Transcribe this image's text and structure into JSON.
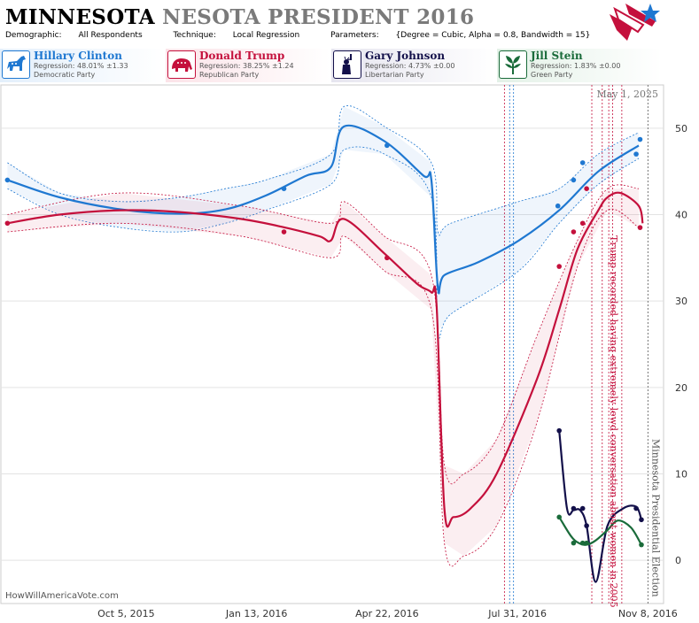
{
  "header": {
    "title_state": "MINNESOTA",
    "title_rest": "NESOTA PRESIDENT 2016",
    "demographic_label": "Demographic:",
    "demographic_value": "All Respondents",
    "technique_label": "Technique:",
    "technique_value": "Local Regression",
    "parameters_label": "Parameters:",
    "parameters_value": "{Degree = Cubic, Alpha = 0.8, Bandwidth = 15}"
  },
  "candidates": [
    {
      "name": "Hillary Clinton",
      "regression": "Regression: 48.01% ±1.33",
      "party": "Democratic Party",
      "color": "#1f78d1",
      "icon": "donkey-icon"
    },
    {
      "name": "Donald Trump",
      "regression": "Regression: 38.25% ±1.24",
      "party": "Republican Party",
      "color": "#c4103c",
      "icon": "elephant-icon"
    },
    {
      "name": "Gary Johnson",
      "regression": "Regression: 4.73% ±0.00",
      "party": "Libertarian Party",
      "color": "#13104a",
      "icon": "liberty-icon"
    },
    {
      "name": "Jill Stein",
      "regression": "Regression: 1.83% ±0.00",
      "party": "Green Party",
      "color": "#1a6b3a",
      "icon": "leaf-icon"
    }
  ],
  "credit": "HowWillAmericaVote.com",
  "chart_data": {
    "type": "line",
    "x_ticks": [
      "Oct 5, 2015",
      "Jan 13, 2016",
      "Apr 22, 2016",
      "Jul 31, 2016",
      "Nov 8, 2016"
    ],
    "y_ticks": [
      0,
      10,
      20,
      30,
      40,
      50
    ],
    "ylim": [
      -5,
      55
    ],
    "xlim": [
      "2015-07-01",
      "2016-11-20"
    ],
    "date_stamp": "May 1, 2025",
    "annotations": [
      {
        "date": "2016-10-07",
        "text": "Trump recorded having extremely lewd conversation about women in 2005",
        "color": "#c4103c"
      },
      {
        "date": "2016-11-08",
        "text": "Minnesota Presidential Election",
        "color": "#555555"
      }
    ],
    "event_lines": [
      {
        "date": "2016-07-21",
        "color": "#c4103c"
      },
      {
        "date": "2016-07-25",
        "color": "#1f78d1"
      },
      {
        "date": "2016-07-28",
        "color": "#1f78d1"
      },
      {
        "date": "2016-09-26",
        "color": "#c4103c"
      },
      {
        "date": "2016-10-04",
        "color": "#c4103c"
      },
      {
        "date": "2016-10-09",
        "color": "#c4103c"
      },
      {
        "date": "2016-10-12",
        "color": "#c4103c"
      },
      {
        "date": "2016-10-19",
        "color": "#c4103c"
      },
      {
        "date": "2016-11-08",
        "color": "#555555"
      }
    ],
    "series": [
      {
        "name": "Hillary Clinton",
        "color": "#1f78d1",
        "band": true,
        "line": [
          [
            "2015-07-06",
            44
          ],
          [
            "2015-08-15",
            42
          ],
          [
            "2015-10-01",
            40.6
          ],
          [
            "2015-11-15",
            40.1
          ],
          [
            "2015-12-20",
            40.6
          ],
          [
            "2016-01-20",
            42.2
          ],
          [
            "2016-02-20",
            44.5
          ],
          [
            "2016-03-10",
            45.5
          ],
          [
            "2016-03-20",
            50.2
          ],
          [
            "2016-04-20",
            48.5
          ],
          [
            "2016-05-20",
            44.5
          ],
          [
            "2016-05-26",
            44
          ],
          [
            "2016-05-31",
            31.5
          ],
          [
            "2016-06-05",
            33
          ],
          [
            "2016-07-01",
            34.5
          ],
          [
            "2016-08-01",
            37
          ],
          [
            "2016-09-01",
            40.5
          ],
          [
            "2016-10-01",
            45
          ],
          [
            "2016-11-01",
            48
          ]
        ],
        "upper": [
          [
            "2015-07-06",
            46
          ],
          [
            "2015-08-15",
            42.5
          ],
          [
            "2015-10-01",
            41.5
          ],
          [
            "2015-11-15",
            42
          ],
          [
            "2015-12-20",
            43
          ],
          [
            "2016-01-20",
            44
          ],
          [
            "2016-03-10",
            47
          ],
          [
            "2016-03-20",
            52.5
          ],
          [
            "2016-04-20",
            50.2
          ],
          [
            "2016-05-26",
            46
          ],
          [
            "2016-05-31",
            38
          ],
          [
            "2016-06-10",
            39
          ],
          [
            "2016-08-01",
            41.5
          ],
          [
            "2016-09-01",
            43
          ],
          [
            "2016-10-01",
            47
          ],
          [
            "2016-11-01",
            49.5
          ]
        ],
        "lower": [
          [
            "2015-07-06",
            43
          ],
          [
            "2015-08-15",
            40
          ],
          [
            "2015-10-01",
            38.5
          ],
          [
            "2015-11-15",
            38
          ],
          [
            "2015-12-20",
            39
          ],
          [
            "2016-01-20",
            40.5
          ],
          [
            "2016-03-10",
            43.5
          ],
          [
            "2016-03-20",
            47.5
          ],
          [
            "2016-04-20",
            47
          ],
          [
            "2016-05-26",
            42
          ],
          [
            "2016-05-31",
            26.5
          ],
          [
            "2016-06-10",
            28.5
          ],
          [
            "2016-08-01",
            33.5
          ],
          [
            "2016-09-01",
            39
          ],
          [
            "2016-10-01",
            43.5
          ],
          [
            "2016-11-01",
            46.5
          ]
        ],
        "points": [
          [
            "2015-07-06",
            44
          ],
          [
            "2016-02-03",
            43
          ],
          [
            "2016-04-22",
            48
          ],
          [
            "2016-08-31",
            41
          ],
          [
            "2016-09-12",
            44
          ],
          [
            "2016-09-19",
            46
          ],
          [
            "2016-10-30",
            47
          ],
          [
            "2016-11-02",
            48.7
          ]
        ]
      },
      {
        "name": "Donald Trump",
        "color": "#c4103c",
        "band": true,
        "line": [
          [
            "2015-07-06",
            39
          ],
          [
            "2015-08-15",
            40
          ],
          [
            "2015-10-01",
            40.5
          ],
          [
            "2015-11-15",
            40.3
          ],
          [
            "2016-01-01",
            39.5
          ],
          [
            "2016-02-01",
            38.6
          ],
          [
            "2016-03-01",
            37.5
          ],
          [
            "2016-03-10",
            37
          ],
          [
            "2016-03-20",
            39.5
          ],
          [
            "2016-04-20",
            35.5
          ],
          [
            "2016-05-15",
            32
          ],
          [
            "2016-05-26",
            31
          ],
          [
            "2016-05-30",
            29.5
          ],
          [
            "2016-06-05",
            6
          ],
          [
            "2016-06-12",
            5
          ],
          [
            "2016-06-25",
            6
          ],
          [
            "2016-07-15",
            10
          ],
          [
            "2016-08-15",
            21
          ],
          [
            "2016-09-01",
            29
          ],
          [
            "2016-09-15",
            36
          ],
          [
            "2016-10-01",
            40.5
          ],
          [
            "2016-10-08",
            42
          ],
          [
            "2016-10-18",
            42.5
          ],
          [
            "2016-11-01",
            41
          ],
          [
            "2016-11-04",
            39
          ]
        ],
        "upper": [
          [
            "2015-07-06",
            40
          ],
          [
            "2015-10-01",
            42.5
          ],
          [
            "2016-01-01",
            41
          ],
          [
            "2016-03-10",
            39
          ],
          [
            "2016-03-20",
            41.5
          ],
          [
            "2016-04-20",
            37.5
          ],
          [
            "2016-05-26",
            33
          ],
          [
            "2016-06-05",
            11
          ],
          [
            "2016-06-20",
            10
          ],
          [
            "2016-07-15",
            14
          ],
          [
            "2016-08-15",
            26
          ],
          [
            "2016-09-15",
            37
          ],
          [
            "2016-10-08",
            43
          ],
          [
            "2016-11-01",
            43
          ]
        ],
        "lower": [
          [
            "2015-07-06",
            38
          ],
          [
            "2015-10-01",
            39
          ],
          [
            "2016-01-01",
            37.5
          ],
          [
            "2016-03-10",
            35
          ],
          [
            "2016-03-20",
            37.5
          ],
          [
            "2016-04-20",
            33.5
          ],
          [
            "2016-05-26",
            29
          ],
          [
            "2016-06-05",
            2
          ],
          [
            "2016-06-20",
            0.5
          ],
          [
            "2016-07-15",
            4
          ],
          [
            "2016-08-15",
            16
          ],
          [
            "2016-09-15",
            34
          ],
          [
            "2016-10-08",
            40.5
          ],
          [
            "2016-11-01",
            38.5
          ]
        ],
        "points": [
          [
            "2015-07-06",
            39
          ],
          [
            "2016-02-03",
            38
          ],
          [
            "2016-04-22",
            35
          ],
          [
            "2016-09-01",
            34
          ],
          [
            "2016-09-12",
            38
          ],
          [
            "2016-09-19",
            39
          ],
          [
            "2016-09-22",
            43
          ],
          [
            "2016-11-02",
            38.5
          ]
        ]
      },
      {
        "name": "Gary Johnson",
        "color": "#13104a",
        "band": false,
        "line": [
          [
            "2016-09-01",
            15
          ],
          [
            "2016-09-07",
            6
          ],
          [
            "2016-09-12",
            5.8
          ],
          [
            "2016-09-17",
            5.8
          ],
          [
            "2016-09-22",
            4
          ],
          [
            "2016-09-29",
            -2.5
          ],
          [
            "2016-10-08",
            4
          ],
          [
            "2016-10-20",
            6
          ],
          [
            "2016-10-30",
            6.2
          ],
          [
            "2016-11-03",
            4.7
          ]
        ],
        "points": [
          [
            "2016-09-01",
            15
          ],
          [
            "2016-09-12",
            6
          ],
          [
            "2016-09-19",
            6
          ],
          [
            "2016-09-22",
            4
          ],
          [
            "2016-10-30",
            6
          ],
          [
            "2016-11-03",
            4.7
          ]
        ]
      },
      {
        "name": "Jill Stein",
        "color": "#1a6b3a",
        "band": false,
        "line": [
          [
            "2016-09-01",
            5
          ],
          [
            "2016-09-10",
            2.8
          ],
          [
            "2016-09-16",
            2
          ],
          [
            "2016-09-22",
            1.8
          ],
          [
            "2016-09-29",
            2.3
          ],
          [
            "2016-10-08",
            3.5
          ],
          [
            "2016-10-16",
            4.6
          ],
          [
            "2016-10-26",
            3.8
          ],
          [
            "2016-11-03",
            1.8
          ]
        ],
        "points": [
          [
            "2016-09-01",
            5
          ],
          [
            "2016-09-12",
            2
          ],
          [
            "2016-09-19",
            2
          ],
          [
            "2016-09-22",
            2
          ],
          [
            "2016-11-03",
            1.8
          ]
        ]
      }
    ]
  }
}
